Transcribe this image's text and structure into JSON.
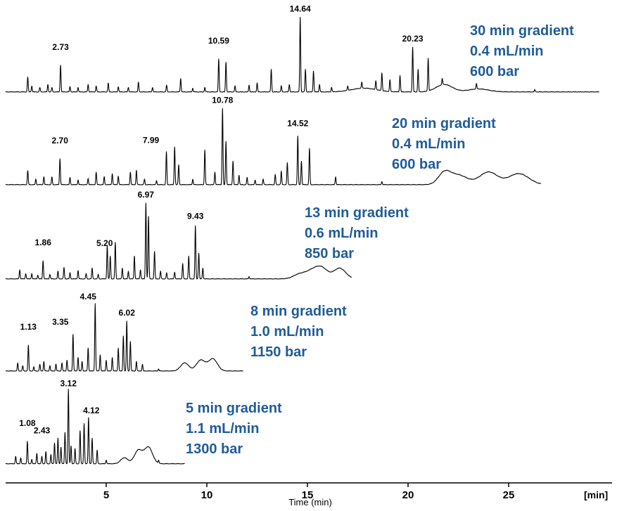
{
  "chart_data": {
    "type": "line",
    "xlabel": "Time (min)",
    "x_unit_label": "[min]",
    "xlim": [
      0,
      29.5
    ],
    "x_ticks": [
      5,
      10,
      15,
      20,
      25
    ],
    "grid": false,
    "condition_color": "#1f5b99",
    "series": [
      {
        "name": "30 min gradient",
        "conditions": [
          "30 min gradient",
          "0.4 mL/min",
          "600 bar"
        ],
        "x_end": 29.5,
        "peaks": [
          {
            "x": 1.1,
            "h": 0.2
          },
          {
            "x": 1.3,
            "h": 0.08
          },
          {
            "x": 1.7,
            "h": 0.06
          },
          {
            "x": 2.1,
            "h": 0.1
          },
          {
            "x": 2.3,
            "h": 0.06
          },
          {
            "x": 2.73,
            "h": 0.36
          },
          {
            "x": 3.2,
            "h": 0.07
          },
          {
            "x": 3.6,
            "h": 0.06
          },
          {
            "x": 4.1,
            "h": 0.1
          },
          {
            "x": 4.5,
            "h": 0.08
          },
          {
            "x": 5.1,
            "h": 0.12
          },
          {
            "x": 5.6,
            "h": 0.07
          },
          {
            "x": 6.1,
            "h": 0.06
          },
          {
            "x": 6.6,
            "h": 0.13
          },
          {
            "x": 7.3,
            "h": 0.06
          },
          {
            "x": 8.0,
            "h": 0.09
          },
          {
            "x": 8.7,
            "h": 0.18
          },
          {
            "x": 9.3,
            "h": 0.05
          },
          {
            "x": 9.9,
            "h": 0.06
          },
          {
            "x": 10.59,
            "h": 0.44
          },
          {
            "x": 10.95,
            "h": 0.4
          },
          {
            "x": 11.4,
            "h": 0.08
          },
          {
            "x": 12.1,
            "h": 0.09
          },
          {
            "x": 12.5,
            "h": 0.12
          },
          {
            "x": 13.2,
            "h": 0.3
          },
          {
            "x": 13.7,
            "h": 0.08
          },
          {
            "x": 14.1,
            "h": 0.1
          },
          {
            "x": 14.64,
            "h": 1.0
          },
          {
            "x": 14.9,
            "h": 0.3
          },
          {
            "x": 15.3,
            "h": 0.28
          },
          {
            "x": 15.6,
            "h": 0.1
          },
          {
            "x": 16.2,
            "h": 0.06
          },
          {
            "x": 17.0,
            "h": 0.06
          },
          {
            "x": 17.7,
            "h": 0.08
          },
          {
            "x": 18.4,
            "h": 0.12
          },
          {
            "x": 18.7,
            "h": 0.24
          },
          {
            "x": 19.1,
            "h": 0.16
          },
          {
            "x": 19.6,
            "h": 0.22
          },
          {
            "x": 20.23,
            "h": 0.6
          },
          {
            "x": 20.5,
            "h": 0.3
          },
          {
            "x": 21.0,
            "h": 0.44
          },
          {
            "x": 21.7,
            "h": 0.08
          },
          {
            "x": 23.4,
            "h": 0.07
          },
          {
            "x": 26.3,
            "h": 0.03
          }
        ]
      },
      {
        "name": "20 min gradient",
        "conditions": [
          "20 min gradient",
          "0.4 mL/min",
          "600 bar"
        ],
        "x_end": 26.6,
        "peaks": [
          {
            "x": 1.1,
            "h": 0.18
          },
          {
            "x": 1.5,
            "h": 0.07
          },
          {
            "x": 1.9,
            "h": 0.1
          },
          {
            "x": 2.3,
            "h": 0.1
          },
          {
            "x": 2.7,
            "h": 0.33
          },
          {
            "x": 3.2,
            "h": 0.09
          },
          {
            "x": 3.6,
            "h": 0.06
          },
          {
            "x": 4.1,
            "h": 0.08
          },
          {
            "x": 4.5,
            "h": 0.16
          },
          {
            "x": 4.9,
            "h": 0.1
          },
          {
            "x": 5.3,
            "h": 0.14
          },
          {
            "x": 5.6,
            "h": 0.11
          },
          {
            "x": 6.2,
            "h": 0.16
          },
          {
            "x": 6.5,
            "h": 0.18
          },
          {
            "x": 6.9,
            "h": 0.07
          },
          {
            "x": 7.5,
            "h": 0.05
          },
          {
            "x": 7.99,
            "h": 0.42
          },
          {
            "x": 8.4,
            "h": 0.48
          },
          {
            "x": 8.6,
            "h": 0.25
          },
          {
            "x": 9.3,
            "h": 0.07
          },
          {
            "x": 9.9,
            "h": 0.44
          },
          {
            "x": 10.4,
            "h": 0.16
          },
          {
            "x": 10.78,
            "h": 0.97
          },
          {
            "x": 10.95,
            "h": 0.55
          },
          {
            "x": 11.3,
            "h": 0.3
          },
          {
            "x": 11.6,
            "h": 0.12
          },
          {
            "x": 12.0,
            "h": 0.09
          },
          {
            "x": 12.4,
            "h": 0.06
          },
          {
            "x": 12.8,
            "h": 0.07
          },
          {
            "x": 13.4,
            "h": 0.13
          },
          {
            "x": 13.7,
            "h": 0.17
          },
          {
            "x": 14.0,
            "h": 0.28
          },
          {
            "x": 14.52,
            "h": 0.62
          },
          {
            "x": 14.7,
            "h": 0.3
          },
          {
            "x": 15.1,
            "h": 0.46
          },
          {
            "x": 16.4,
            "h": 0.1
          },
          {
            "x": 18.7,
            "h": 0.04
          }
        ]
      },
      {
        "name": "13 min gradient",
        "conditions": [
          "13 min gradient",
          "0.6 mL/min",
          "850 bar"
        ],
        "x_end": 17.2,
        "peaks": [
          {
            "x": 0.7,
            "h": 0.12
          },
          {
            "x": 1.0,
            "h": 0.07
          },
          {
            "x": 1.3,
            "h": 0.07
          },
          {
            "x": 1.6,
            "h": 0.05
          },
          {
            "x": 1.86,
            "h": 0.24
          },
          {
            "x": 2.2,
            "h": 0.06
          },
          {
            "x": 2.6,
            "h": 0.1
          },
          {
            "x": 2.9,
            "h": 0.15
          },
          {
            "x": 3.2,
            "h": 0.08
          },
          {
            "x": 3.6,
            "h": 0.11
          },
          {
            "x": 4.0,
            "h": 0.07
          },
          {
            "x": 4.3,
            "h": 0.14
          },
          {
            "x": 4.6,
            "h": 0.06
          },
          {
            "x": 5.05,
            "h": 0.44
          },
          {
            "x": 5.2,
            "h": 0.3
          },
          {
            "x": 5.45,
            "h": 0.48
          },
          {
            "x": 5.8,
            "h": 0.14
          },
          {
            "x": 6.1,
            "h": 0.1
          },
          {
            "x": 6.4,
            "h": 0.3
          },
          {
            "x": 6.7,
            "h": 0.12
          },
          {
            "x": 6.97,
            "h": 1.0
          },
          {
            "x": 7.1,
            "h": 0.82
          },
          {
            "x": 7.4,
            "h": 0.36
          },
          {
            "x": 7.7,
            "h": 0.1
          },
          {
            "x": 8.0,
            "h": 0.08
          },
          {
            "x": 8.4,
            "h": 0.09
          },
          {
            "x": 8.8,
            "h": 0.2
          },
          {
            "x": 9.1,
            "h": 0.3
          },
          {
            "x": 9.43,
            "h": 0.7
          },
          {
            "x": 9.6,
            "h": 0.34
          },
          {
            "x": 9.8,
            "h": 0.14
          },
          {
            "x": 12.1,
            "h": 0.03
          }
        ]
      },
      {
        "name": "8 min gradient",
        "conditions": [
          "8 min gradient",
          "1.0 mL/min",
          "1150 bar"
        ],
        "x_end": 11.8,
        "peaks": [
          {
            "x": 0.6,
            "h": 0.12
          },
          {
            "x": 0.85,
            "h": 0.08
          },
          {
            "x": 1.13,
            "h": 0.38
          },
          {
            "x": 1.4,
            "h": 0.06
          },
          {
            "x": 1.7,
            "h": 0.1
          },
          {
            "x": 1.9,
            "h": 0.14
          },
          {
            "x": 2.2,
            "h": 0.08
          },
          {
            "x": 2.5,
            "h": 0.1
          },
          {
            "x": 2.8,
            "h": 0.12
          },
          {
            "x": 3.05,
            "h": 0.16
          },
          {
            "x": 3.35,
            "h": 0.54
          },
          {
            "x": 3.6,
            "h": 0.2
          },
          {
            "x": 3.8,
            "h": 0.14
          },
          {
            "x": 4.1,
            "h": 0.34
          },
          {
            "x": 4.45,
            "h": 1.0
          },
          {
            "x": 4.7,
            "h": 0.24
          },
          {
            "x": 5.0,
            "h": 0.16
          },
          {
            "x": 5.3,
            "h": 0.2
          },
          {
            "x": 5.6,
            "h": 0.34
          },
          {
            "x": 5.85,
            "h": 0.52
          },
          {
            "x": 6.02,
            "h": 0.74
          },
          {
            "x": 6.2,
            "h": 0.44
          },
          {
            "x": 6.5,
            "h": 0.14
          },
          {
            "x": 6.8,
            "h": 0.1
          },
          {
            "x": 7.6,
            "h": 0.03
          }
        ]
      },
      {
        "name": "5 min gradient",
        "conditions": [
          "5 min gradient",
          "1.1 mL/min",
          "1300 bar"
        ],
        "x_end": 8.9,
        "peaks": [
          {
            "x": 0.5,
            "h": 0.1
          },
          {
            "x": 0.75,
            "h": 0.08
          },
          {
            "x": 1.08,
            "h": 0.3
          },
          {
            "x": 1.3,
            "h": 0.06
          },
          {
            "x": 1.55,
            "h": 0.14
          },
          {
            "x": 1.8,
            "h": 0.1
          },
          {
            "x": 2.0,
            "h": 0.16
          },
          {
            "x": 2.25,
            "h": 0.12
          },
          {
            "x": 2.43,
            "h": 0.28
          },
          {
            "x": 2.6,
            "h": 0.34
          },
          {
            "x": 2.75,
            "h": 0.22
          },
          {
            "x": 2.95,
            "h": 0.42
          },
          {
            "x": 3.12,
            "h": 1.0
          },
          {
            "x": 3.25,
            "h": 0.24
          },
          {
            "x": 3.45,
            "h": 0.2
          },
          {
            "x": 3.7,
            "h": 0.44
          },
          {
            "x": 3.9,
            "h": 0.54
          },
          {
            "x": 4.12,
            "h": 0.62
          },
          {
            "x": 4.3,
            "h": 0.34
          },
          {
            "x": 4.55,
            "h": 0.18
          },
          {
            "x": 5.0,
            "h": 0.05
          },
          {
            "x": 7.6,
            "h": 0.04
          }
        ]
      }
    ],
    "peak_labels": [
      [
        "2.73",
        "10.59",
        "14.64",
        "20.23"
      ],
      [
        "2.70",
        "7.99",
        "10.78",
        "14.52"
      ],
      [
        "1.86",
        "5.20",
        "6.97",
        "9.43"
      ],
      [
        "1.13",
        "3.35",
        "4.45",
        "6.02"
      ],
      [
        "1.08",
        "2.43",
        "3.12",
        "4.12"
      ]
    ],
    "broad_humps": [
      [
        [
          17.8,
          0.05,
          0.6
        ],
        [
          21.8,
          0.1,
          0.4
        ],
        [
          23.5,
          0.04,
          0.5
        ]
      ],
      [
        [
          21.8,
          0.14,
          0.3
        ],
        [
          22.5,
          0.12,
          0.45
        ],
        [
          24.0,
          0.16,
          0.45
        ],
        [
          25.5,
          0.14,
          0.5
        ]
      ],
      [
        [
          14.6,
          0.06,
          0.3
        ],
        [
          15.2,
          0.09,
          0.3
        ],
        [
          15.7,
          0.14,
          0.3
        ],
        [
          16.6,
          0.14,
          0.3
        ]
      ],
      [
        [
          8.9,
          0.12,
          0.2
        ],
        [
          9.7,
          0.16,
          0.22
        ],
        [
          10.3,
          0.18,
          0.22
        ]
      ],
      [
        [
          5.9,
          0.08,
          0.18
        ],
        [
          6.6,
          0.18,
          0.2
        ],
        [
          7.1,
          0.22,
          0.2
        ]
      ]
    ]
  }
}
